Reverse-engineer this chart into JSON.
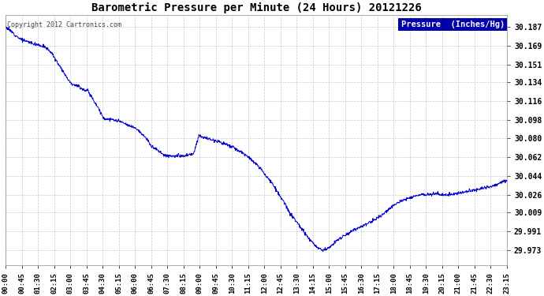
{
  "title": "Barometric Pressure per Minute (24 Hours) 20121226",
  "copyright_text": "Copyright 2012 Cartronics.com",
  "legend_label": "Pressure  (Inches/Hg)",
  "line_color": "#0000cc",
  "background_color": "#ffffff",
  "grid_color": "#c8c8c8",
  "y_ticks": [
    29.973,
    29.991,
    30.009,
    30.026,
    30.044,
    30.062,
    30.08,
    30.098,
    30.116,
    30.134,
    30.151,
    30.169,
    30.187
  ],
  "y_min": 29.958,
  "y_max": 30.198,
  "x_tick_labels": [
    "00:00",
    "00:45",
    "01:30",
    "02:15",
    "03:00",
    "03:45",
    "04:30",
    "05:15",
    "06:00",
    "06:45",
    "07:30",
    "08:15",
    "09:00",
    "09:45",
    "10:30",
    "11:15",
    "12:00",
    "12:45",
    "13:30",
    "14:15",
    "15:00",
    "15:45",
    "16:30",
    "17:15",
    "18:00",
    "18:45",
    "19:30",
    "20:15",
    "21:00",
    "21:45",
    "22:30",
    "23:15"
  ],
  "key_times": [
    0.0,
    0.01,
    0.03,
    0.055,
    0.065,
    0.07,
    0.08,
    0.09,
    0.1,
    0.11,
    0.12,
    0.13,
    0.145,
    0.155,
    0.16,
    0.165,
    0.175,
    0.185,
    0.195,
    0.21,
    0.22,
    0.23,
    0.24,
    0.26,
    0.27,
    0.28,
    0.29,
    0.305,
    0.315,
    0.33,
    0.34,
    0.355,
    0.365,
    0.375,
    0.385,
    0.395,
    0.4,
    0.41,
    0.42,
    0.43,
    0.44,
    0.45,
    0.455,
    0.465,
    0.475,
    0.485,
    0.495,
    0.51,
    0.52,
    0.53,
    0.54,
    0.55,
    0.56,
    0.565,
    0.575,
    0.585,
    0.595,
    0.605,
    0.615,
    0.625,
    0.635,
    0.645,
    0.655,
    0.66,
    0.67,
    0.68,
    0.69,
    0.7,
    0.71,
    0.72,
    0.73,
    0.74,
    0.75,
    0.76,
    0.77,
    0.78,
    0.79,
    0.8,
    0.81,
    0.82,
    0.83,
    0.84,
    0.85,
    0.86,
    0.87,
    0.88,
    0.89,
    0.9,
    0.91,
    0.92,
    0.93,
    0.94,
    0.95,
    0.96,
    0.97,
    0.98,
    0.99,
    1.0
  ],
  "key_pressures": [
    30.187,
    30.183,
    30.175,
    30.171,
    30.17,
    30.169,
    30.167,
    30.163,
    30.155,
    30.148,
    30.14,
    30.133,
    30.13,
    30.127,
    30.126,
    30.125,
    30.117,
    30.109,
    30.099,
    30.098,
    30.097,
    30.096,
    30.093,
    30.09,
    30.085,
    30.08,
    30.073,
    30.068,
    30.064,
    30.063,
    30.063,
    30.063,
    30.064,
    30.065,
    30.083,
    30.081,
    30.08,
    30.079,
    30.078,
    30.076,
    30.074,
    30.072,
    30.071,
    30.068,
    30.065,
    30.062,
    30.057,
    30.05,
    30.044,
    30.038,
    30.03,
    30.022,
    30.015,
    30.009,
    30.003,
    29.997,
    29.99,
    29.984,
    29.978,
    29.974,
    29.973,
    29.975,
    29.979,
    29.982,
    29.985,
    29.988,
    29.991,
    29.993,
    29.996,
    29.998,
    30.0,
    30.003,
    30.006,
    30.01,
    30.014,
    30.018,
    30.02,
    30.022,
    30.024,
    30.025,
    30.026,
    30.026,
    30.027,
    30.027,
    30.026,
    30.026,
    30.026,
    30.027,
    30.028,
    30.029,
    30.03,
    30.031,
    30.032,
    30.033,
    30.034,
    30.036,
    30.038,
    30.04
  ]
}
